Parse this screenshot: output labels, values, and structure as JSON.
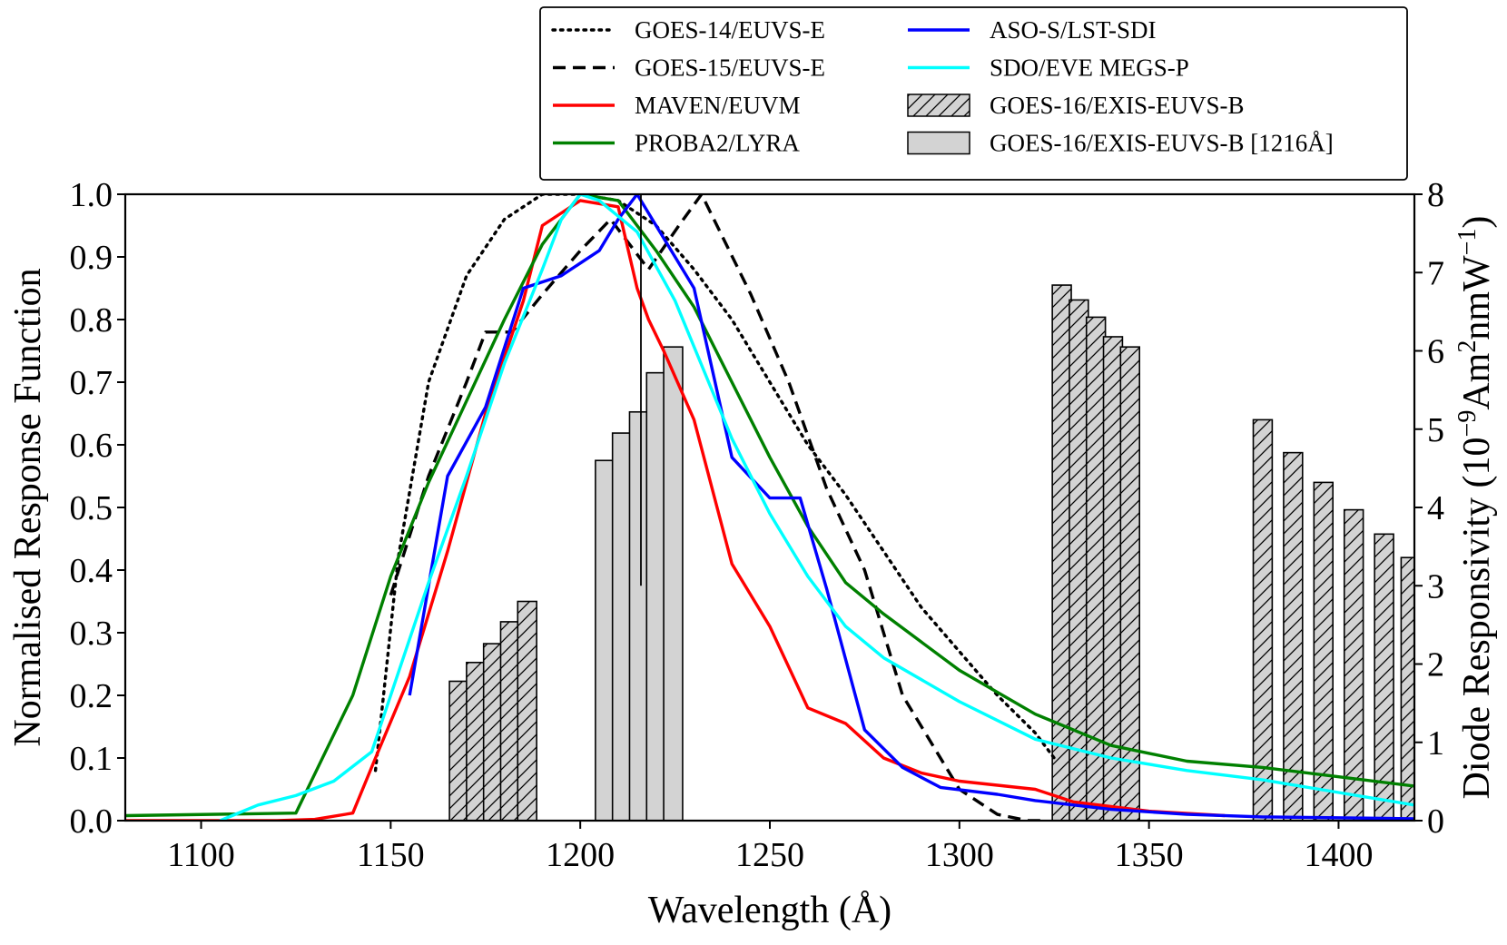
{
  "chart_data": {
    "type": "line",
    "title": "",
    "xlabel": "Wavelength (Å)",
    "ylabel_left": "Normalised Response Function",
    "ylabel_right": "Diode Responsivity  (10⁻⁹Am²nmW⁻¹)",
    "ylabel_right_parts": [
      "Diode Responsivity  (10",
      "−9",
      "Am",
      "2",
      "nmW",
      "−1",
      ")"
    ],
    "xlim": [
      1080,
      1420
    ],
    "ylim_left": [
      0,
      1
    ],
    "ylim_right": [
      0,
      8
    ],
    "x_ticks": [
      1100,
      1150,
      1200,
      1250,
      1300,
      1350,
      1400
    ],
    "x_tick_labels": [
      "1100",
      "1150",
      "1200",
      "1250",
      "1300",
      "1350",
      "1400"
    ],
    "y_left_ticks": [
      0,
      0.1,
      0.2,
      0.3,
      0.4,
      0.5,
      0.6,
      0.7,
      0.8,
      0.9,
      1.0
    ],
    "y_left_tick_labels": [
      "0.0",
      "0.1",
      "0.2",
      "0.3",
      "0.4",
      "0.5",
      "0.6",
      "0.7",
      "0.8",
      "0.9",
      "1.0"
    ],
    "y_right_ticks": [
      0,
      1,
      2,
      3,
      4,
      5,
      6,
      7,
      8
    ],
    "y_right_tick_labels": [
      "0",
      "1",
      "2",
      "3",
      "4",
      "5",
      "6",
      "7",
      "8"
    ],
    "legend_position": "top-right, above plot",
    "series": [
      {
        "name": "GOES-14/EUVS-E",
        "color": "#000000",
        "style": "dotted",
        "x": [
          1146,
          1152,
          1160,
          1170,
          1180,
          1190,
          1200,
          1210,
          1220,
          1230,
          1240,
          1250,
          1260,
          1270,
          1280,
          1290,
          1300,
          1310,
          1320,
          1325
        ],
        "y": [
          0.08,
          0.42,
          0.7,
          0.87,
          0.96,
          1.0,
          1.0,
          0.99,
          0.95,
          0.88,
          0.8,
          0.7,
          0.6,
          0.52,
          0.43,
          0.34,
          0.27,
          0.2,
          0.14,
          0.1
        ]
      },
      {
        "name": "GOES-15/EUVS-E",
        "color": "#000000",
        "style": "dashed",
        "x": [
          1150,
          1160,
          1170,
          1175,
          1182,
          1190,
          1200,
          1208,
          1218,
          1226,
          1232,
          1245,
          1255,
          1265,
          1275,
          1285,
          1300,
          1310,
          1318,
          1322
        ],
        "y": [
          0.36,
          0.55,
          0.7,
          0.78,
          0.78,
          0.84,
          0.91,
          0.96,
          0.88,
          0.95,
          1.0,
          0.84,
          0.7,
          0.53,
          0.4,
          0.2,
          0.05,
          0.01,
          0.0,
          0.0
        ]
      },
      {
        "name": "MAVEN/EUVM",
        "color": "#ff0000",
        "style": "solid",
        "x": [
          1080,
          1120,
          1130,
          1140,
          1146,
          1155,
          1165,
          1175,
          1185,
          1190,
          1200,
          1210,
          1215,
          1218,
          1222,
          1230,
          1240,
          1250,
          1260,
          1270,
          1280,
          1290,
          1300,
          1320,
          1330,
          1350,
          1370
        ],
        "y": [
          0.0,
          0.0,
          0.002,
          0.012,
          0.1,
          0.23,
          0.43,
          0.65,
          0.83,
          0.95,
          0.99,
          0.98,
          0.85,
          0.8,
          0.75,
          0.64,
          0.41,
          0.31,
          0.18,
          0.155,
          0.1,
          0.076,
          0.063,
          0.05,
          0.03,
          0.015,
          0.008
        ]
      },
      {
        "name": "PROBA2/LYRA",
        "color": "#008000",
        "style": "solid",
        "x": [
          1080,
          1125,
          1140,
          1150,
          1160,
          1170,
          1180,
          1190,
          1200,
          1210,
          1220,
          1230,
          1240,
          1250,
          1260,
          1270,
          1280,
          1300,
          1320,
          1340,
          1360,
          1380,
          1400,
          1420
        ],
        "y": [
          0.008,
          0.012,
          0.2,
          0.39,
          0.54,
          0.67,
          0.8,
          0.92,
          1.0,
          0.99,
          0.91,
          0.82,
          0.7,
          0.58,
          0.47,
          0.38,
          0.33,
          0.24,
          0.17,
          0.12,
          0.095,
          0.085,
          0.07,
          0.055
        ]
      },
      {
        "name": "ASO-S/LST-SDI",
        "color": "#0000ff",
        "style": "solid",
        "x": [
          1155,
          1165,
          1175,
          1185,
          1195,
          1205,
          1210,
          1215,
          1220,
          1230,
          1240,
          1250,
          1258,
          1265,
          1275,
          1285,
          1295,
          1310,
          1320,
          1340,
          1360,
          1380,
          1420
        ],
        "y": [
          0.2,
          0.55,
          0.66,
          0.85,
          0.87,
          0.91,
          0.96,
          1.0,
          0.95,
          0.85,
          0.58,
          0.515,
          0.515,
          0.37,
          0.145,
          0.085,
          0.053,
          0.042,
          0.032,
          0.018,
          0.01,
          0.006,
          0.003
        ]
      },
      {
        "name": "SDO/EVE MEGS-P",
        "color": "#00ffff",
        "style": "solid",
        "x": [
          1105,
          1115,
          1125,
          1135,
          1145,
          1160,
          1170,
          1180,
          1190,
          1195,
          1200,
          1205,
          1215,
          1225,
          1240,
          1250,
          1260,
          1270,
          1280,
          1300,
          1320,
          1340,
          1360,
          1380,
          1400,
          1420
        ],
        "y": [
          0.0,
          0.025,
          0.04,
          0.063,
          0.11,
          0.38,
          0.55,
          0.73,
          0.88,
          0.96,
          1.0,
          0.99,
          0.94,
          0.83,
          0.61,
          0.49,
          0.39,
          0.31,
          0.26,
          0.19,
          0.13,
          0.1,
          0.08,
          0.065,
          0.045,
          0.025
        ]
      },
      {
        "name": "ASO-S/LST-SDI instrument band (vertical)",
        "color": "#000000",
        "style": "solid-thin",
        "x": [
          1216,
          1216
        ],
        "y": [
          0.375,
          1.0
        ]
      }
    ],
    "bars": {
      "axis": "right",
      "width": 5,
      "hatched": {
        "name": "GOES-16/EXIS-EUVS-B",
        "groups": [
          {
            "x": [
              1168,
              1172.5,
              1177,
              1181.5,
              1186
            ],
            "values": [
              1.78,
              2.02,
              2.26,
              2.54,
              2.8
            ]
          },
          {
            "x": [
              1327,
              1331.5,
              1336,
              1340.5,
              1345
            ],
            "values": [
              6.84,
              6.65,
              6.43,
              6.18,
              6.05
            ]
          },
          {
            "x": [
              1380,
              1388,
              1396,
              1404,
              1412,
              1419
            ],
            "values": [
              5.12,
              4.7,
              4.32,
              3.97,
              3.66,
              3.36
            ]
          }
        ]
      },
      "solid": {
        "name": "GOES-16/EXIS-EUVS-B [1216Å]",
        "x": [
          1206.5,
          1211,
          1215.5,
          1220,
          1224.5
        ],
        "values": [
          4.6,
          4.95,
          5.22,
          5.72,
          6.05
        ]
      }
    },
    "legend": [
      {
        "label": "GOES-14/EUVS-E",
        "kind": "line",
        "color": "#000000",
        "style": "dotted"
      },
      {
        "label": "GOES-15/EUVS-E",
        "kind": "line",
        "color": "#000000",
        "style": "dashed"
      },
      {
        "label": "MAVEN/EUVM",
        "kind": "line",
        "color": "#ff0000",
        "style": "solid"
      },
      {
        "label": "PROBA2/LYRA",
        "kind": "line",
        "color": "#008000",
        "style": "solid"
      },
      {
        "label": "ASO-S/LST-SDI",
        "kind": "line",
        "color": "#0000ff",
        "style": "solid"
      },
      {
        "label": "SDO/EVE MEGS-P",
        "kind": "line",
        "color": "#00ffff",
        "style": "solid"
      },
      {
        "label": "GOES-16/EXIS-EUVS-B",
        "kind": "bar-hatched",
        "color": "#d3d3d3"
      },
      {
        "label": "GOES-16/EXIS-EUVS-B [1216Å]",
        "kind": "bar-solid",
        "color": "#d3d3d3"
      }
    ]
  }
}
